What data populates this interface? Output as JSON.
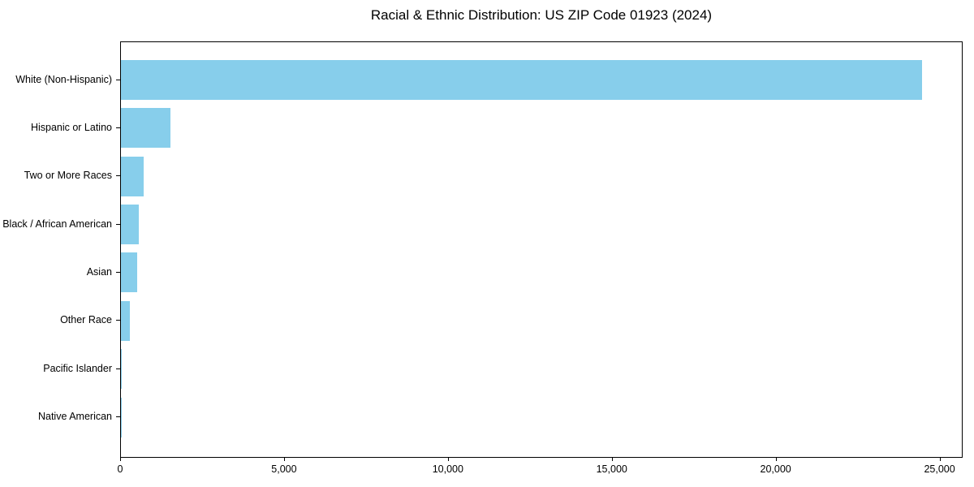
{
  "figure": {
    "background_color": "#ffffff",
    "spine_color": "#000000",
    "text_color": "#000000"
  },
  "chart_data": {
    "type": "bar",
    "orientation": "horizontal",
    "title": "Racial & Ethnic Distribution: US ZIP Code 01923 (2024)",
    "xlabel": "",
    "ylabel": "",
    "categories": [
      "White (Non-Hispanic)",
      "Hispanic or Latino",
      "Two or More Races",
      "Black / African American",
      "Asian",
      "Other Race",
      "Pacific Islander",
      "Native American"
    ],
    "values": [
      24480,
      1510,
      705,
      535,
      490,
      265,
      25,
      10
    ],
    "bar_color": "#87CEEB",
    "xlim": [
      0,
      25704
    ],
    "x_ticks": [
      0,
      5000,
      10000,
      15000,
      20000,
      25000
    ],
    "x_tick_labels": [
      "0",
      "5,000",
      "10,000",
      "15,000",
      "20,000",
      "25,000"
    ],
    "grid": false,
    "legend": "none"
  }
}
